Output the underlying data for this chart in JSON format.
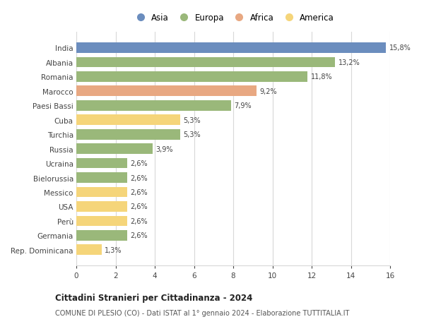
{
  "categories": [
    "India",
    "Albania",
    "Romania",
    "Marocco",
    "Paesi Bassi",
    "Cuba",
    "Turchia",
    "Russia",
    "Ucraina",
    "Bielorussia",
    "Messico",
    "USA",
    "Perù",
    "Germania",
    "Rep. Dominicana"
  ],
  "values": [
    15.8,
    13.2,
    11.8,
    9.2,
    7.9,
    5.3,
    5.3,
    3.9,
    2.6,
    2.6,
    2.6,
    2.6,
    2.6,
    2.6,
    1.3
  ],
  "labels": [
    "15,8%",
    "13,2%",
    "11,8%",
    "9,2%",
    "7,9%",
    "5,3%",
    "5,3%",
    "3,9%",
    "2,6%",
    "2,6%",
    "2,6%",
    "2,6%",
    "2,6%",
    "2,6%",
    "1,3%"
  ],
  "continents": [
    "Asia",
    "Europa",
    "Europa",
    "Africa",
    "Europa",
    "America",
    "Europa",
    "Europa",
    "Europa",
    "Europa",
    "America",
    "America",
    "America",
    "Europa",
    "America"
  ],
  "colors": {
    "Asia": "#6b8dbe",
    "Europa": "#9ab87a",
    "Africa": "#e8a882",
    "America": "#f5d57a"
  },
  "legend_order": [
    "Asia",
    "Europa",
    "Africa",
    "America"
  ],
  "xlim": [
    0,
    16
  ],
  "xticks": [
    0,
    2,
    4,
    6,
    8,
    10,
    12,
    14,
    16
  ],
  "title": "Cittadini Stranieri per Cittadinanza - 2024",
  "subtitle": "COMUNE DI PLESIO (CO) - Dati ISTAT al 1° gennaio 2024 - Elaborazione TUTTITALIA.IT",
  "background_color": "#ffffff",
  "grid_color": "#d8d8d8"
}
